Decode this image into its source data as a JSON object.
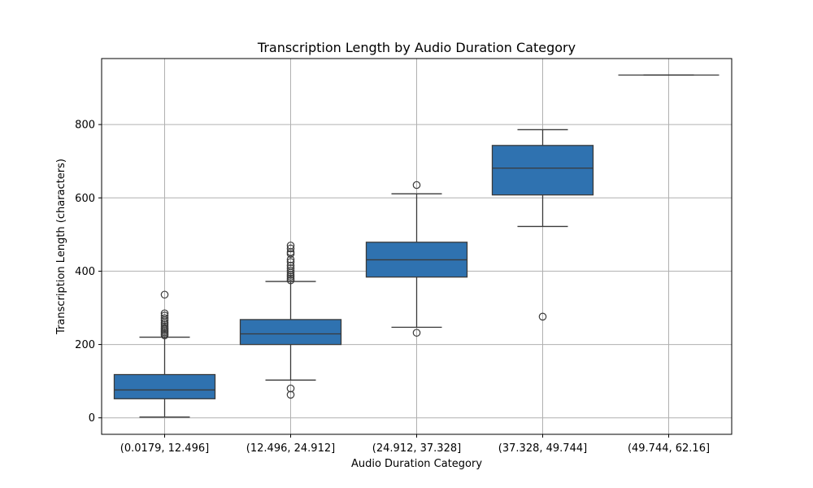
{
  "chart_data": {
    "type": "box",
    "title": "Transcription Length by Audio Duration Category",
    "xlabel": "Audio Duration Category",
    "ylabel": "Transcription Length (characters)",
    "ylim": [
      -45,
      980
    ],
    "yticks": [
      0,
      200,
      400,
      600,
      800
    ],
    "grid": true,
    "categories": [
      "(0.0179, 12.496]",
      "(12.496, 24.912]",
      "(24.912, 37.328]",
      "(37.328, 49.744]",
      "(49.744, 62.16]"
    ],
    "boxes": [
      {
        "whisker_low": 2,
        "q1": 52,
        "median": 76,
        "q3": 118,
        "whisker_high": 220,
        "outliers": [
          225,
          229,
          233,
          237,
          241,
          245,
          250,
          255,
          260,
          266,
          272,
          279,
          285,
          336
        ]
      },
      {
        "whisker_low": 103,
        "q1": 200,
        "median": 229,
        "q3": 268,
        "whisker_high": 372,
        "outliers": [
          63,
          80,
          375,
          380,
          385,
          390,
          396,
          402,
          408,
          415,
          425,
          432,
          447,
          452,
          462,
          470
        ]
      },
      {
        "whisker_low": 247,
        "q1": 384,
        "median": 431,
        "q3": 479,
        "whisker_high": 611,
        "outliers": [
          232,
          635
        ]
      },
      {
        "whisker_low": 522,
        "q1": 608,
        "median": 681,
        "q3": 743,
        "whisker_high": 786,
        "outliers": [
          276
        ]
      },
      {
        "whisker_low": 935,
        "q1": 935,
        "median": 935,
        "q3": 935,
        "whisker_high": 935,
        "outliers": []
      }
    ]
  }
}
